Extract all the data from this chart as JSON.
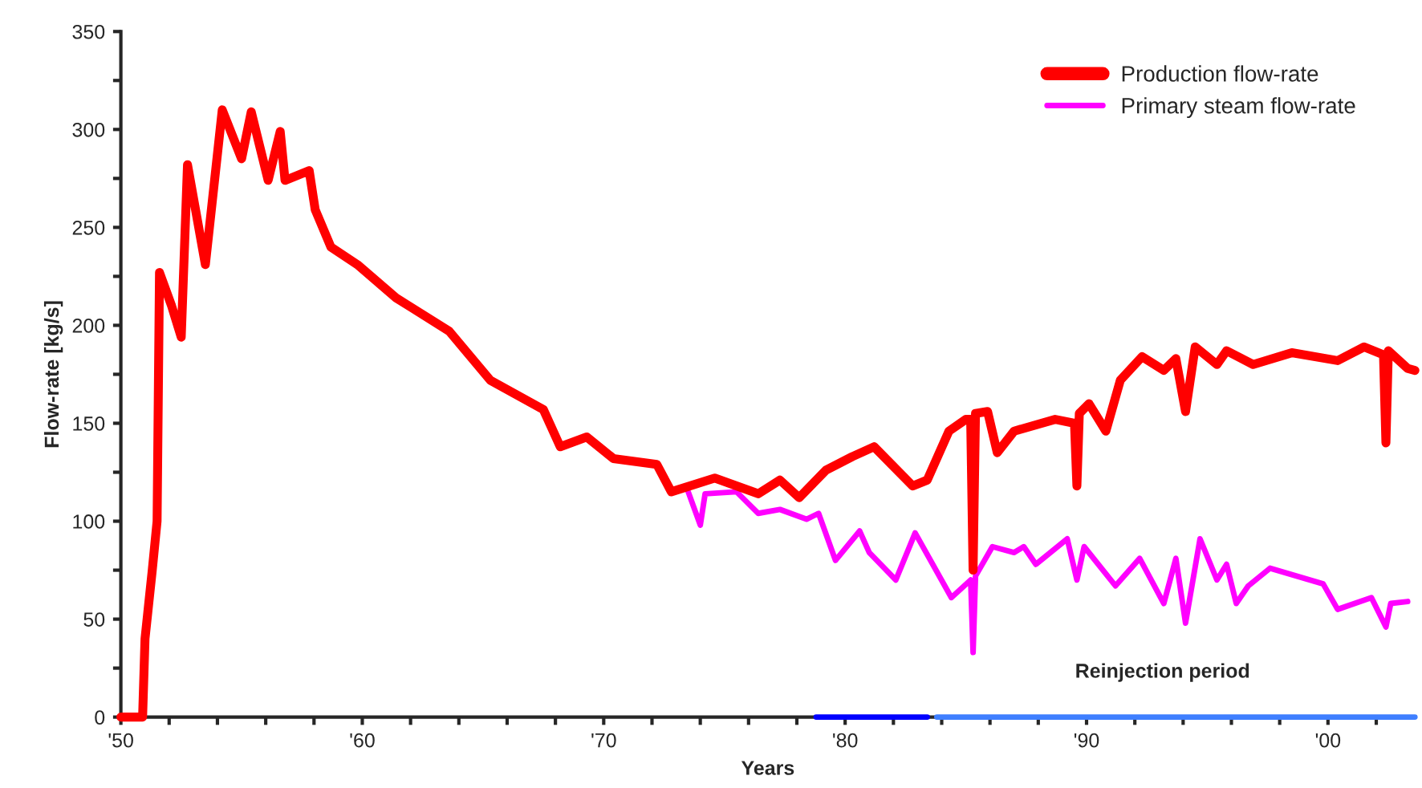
{
  "chart_data": {
    "type": "line",
    "xlabel": "Years",
    "ylabel": "Flow-rate [kg/s]",
    "xlim": [
      1950,
      2003.6
    ],
    "ylim": [
      0,
      350
    ],
    "xticks": [
      {
        "value": 1950,
        "label": "'50"
      },
      {
        "value": 1952,
        "label": null
      },
      {
        "value": 1954,
        "label": null
      },
      {
        "value": 1956,
        "label": null
      },
      {
        "value": 1958,
        "label": null
      },
      {
        "value": 1960,
        "label": "'60"
      },
      {
        "value": 1962,
        "label": null
      },
      {
        "value": 1964,
        "label": null
      },
      {
        "value": 1966,
        "label": null
      },
      {
        "value": 1968,
        "label": null
      },
      {
        "value": 1970,
        "label": "'70"
      },
      {
        "value": 1972,
        "label": null
      },
      {
        "value": 1974,
        "label": null
      },
      {
        "value": 1976,
        "label": null
      },
      {
        "value": 1978,
        "label": null
      },
      {
        "value": 1980,
        "label": "'80"
      },
      {
        "value": 1982,
        "label": null
      },
      {
        "value": 1984,
        "label": null
      },
      {
        "value": 1986,
        "label": null
      },
      {
        "value": 1988,
        "label": null
      },
      {
        "value": 1990,
        "label": "'90"
      },
      {
        "value": 1992,
        "label": null
      },
      {
        "value": 1994,
        "label": null
      },
      {
        "value": 1996,
        "label": null
      },
      {
        "value": 1998,
        "label": null
      },
      {
        "value": 2000,
        "label": "'00"
      },
      {
        "value": 2002,
        "label": null
      }
    ],
    "yticks": [
      0,
      {
        "value": 25,
        "label": null
      },
      50,
      {
        "value": 75,
        "label": null
      },
      100,
      {
        "value": 125,
        "label": null
      },
      150,
      {
        "value": 175,
        "label": null
      },
      200,
      {
        "value": 225,
        "label": null
      },
      250,
      {
        "value": 275,
        "label": null
      },
      300,
      {
        "value": 325,
        "label": null
      },
      350
    ],
    "grid": false,
    "legend": "top right",
    "marker": "none",
    "line_style": "solid",
    "series": [
      {
        "name": "Production flow-rate",
        "color": "#ff0000",
        "x": [
          1950.0,
          1950.9,
          1951.0,
          1951.3,
          1951.5,
          1951.6,
          1952.1,
          1952.5,
          1952.76,
          1953.5,
          1954.2,
          1955.0,
          1955.4,
          1956.1,
          1956.6,
          1956.8,
          1957.8,
          1958.05,
          1958.7,
          1959.8,
          1961.4,
          1963.6,
          1965.3,
          1967.5,
          1968.2,
          1969.3,
          1970.4,
          1972.2,
          1972.8,
          1974.6,
          1976.4,
          1977.3,
          1978.1,
          1979.2,
          1980.3,
          1981.2,
          1982.8,
          1983.4,
          1984.3,
          1985.0,
          1985.2,
          1985.3,
          1985.4,
          1985.9,
          1986.3,
          1987.0,
          1988.7,
          1989.5,
          1989.6,
          1989.7,
          1990.1,
          1990.8,
          1991.4,
          1992.3,
          1993.2,
          1993.7,
          1994.1,
          1994.5,
          1995.4,
          1995.8,
          1996.9,
          1998.5,
          2000.4,
          2001.5,
          2002.3,
          2002.4,
          2002.5,
          2003.3,
          2003.6
        ],
        "values": [
          0,
          0,
          40,
          75,
          100,
          227,
          210,
          194,
          282,
          231,
          310,
          285,
          309,
          274,
          299,
          274,
          279,
          259,
          240,
          231,
          214,
          197,
          172,
          157,
          138,
          143,
          132,
          129,
          115,
          122,
          114,
          121,
          112,
          126,
          133,
          138,
          118,
          121,
          146,
          152,
          152,
          75,
          155,
          156,
          135,
          146,
          152,
          150,
          118,
          155,
          160,
          146,
          172,
          184,
          177,
          183,
          156,
          189,
          180,
          187,
          180,
          186,
          182,
          189,
          185,
          140,
          187,
          178,
          177
        ]
      },
      {
        "name": "Primary steam flow-rate",
        "color": "#ff00ff",
        "x": [
          1973.5,
          1974.0,
          1974.2,
          1975.5,
          1976.4,
          1977.3,
          1978.4,
          1978.9,
          1979.6,
          1980.6,
          1981.0,
          1982.1,
          1982.9,
          1984.4,
          1985.2,
          1985.3,
          1985.4,
          1986.1,
          1987.0,
          1987.4,
          1987.9,
          1989.2,
          1989.6,
          1989.9,
          1991.2,
          1992.2,
          1993.2,
          1993.7,
          1994.1,
          1994.7,
          1995.4,
          1995.8,
          1996.2,
          1996.7,
          1997.6,
          1999.8,
          2000.4,
          2001.8,
          2002.4,
          2002.6,
          2003.3
        ],
        "values": [
          115,
          98,
          114,
          115,
          104,
          106,
          101,
          104,
          80,
          95,
          84,
          70,
          94,
          61,
          70,
          33,
          72,
          87,
          84,
          87,
          78,
          91,
          70,
          87,
          67,
          81,
          58,
          81,
          48,
          91,
          70,
          78,
          58,
          67,
          76,
          68,
          55,
          61,
          46,
          58,
          59
        ]
      },
      {
        "color": "#0000ff",
        "x": [
          1978.8,
          1983.4
        ],
        "values": [
          0,
          0
        ]
      },
      {
        "color": "#3f7fff",
        "x": [
          1983.8,
          2003.6
        ],
        "values": [
          0,
          0
        ]
      }
    ],
    "annotations": [
      "Reinjection period"
    ]
  }
}
